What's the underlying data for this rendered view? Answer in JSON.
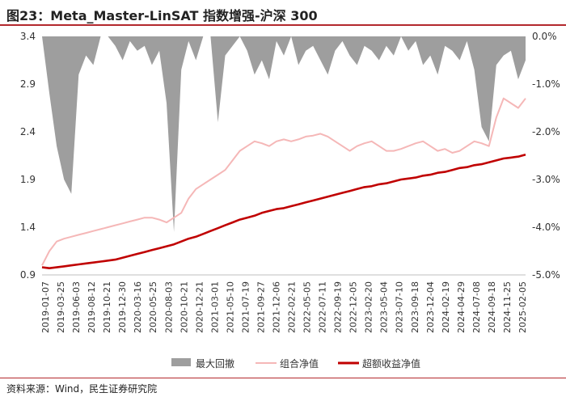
{
  "header": {
    "title": "图23：Meta_Master-LinSAT 指数增强-沪深 300"
  },
  "footer": {
    "source": "资料来源：Wind，民生证券研究院"
  },
  "chart_data": {
    "type": "line",
    "left_axis": {
      "ticks": [
        "0.9",
        "1.4",
        "1.9",
        "2.4",
        "2.9",
        "3.4"
      ],
      "values": [
        0.9,
        1.4,
        1.9,
        2.4,
        2.9,
        3.4
      ],
      "ylim": [
        0.9,
        3.4
      ]
    },
    "right_axis": {
      "ticks": [
        "-5.0%",
        "-4.0%",
        "-3.0%",
        "-2.0%",
        "-1.0%",
        "0.0%"
      ],
      "values": [
        -5,
        -4,
        -3,
        -2,
        -1,
        0
      ],
      "ylim": [
        -5,
        0
      ]
    },
    "x_ticks": [
      "2019-01-07",
      "2019-03-25",
      "2019-06-03",
      "2019-08-12",
      "2019-10-21",
      "2019-12-30",
      "2020-03-16",
      "2020-05-25",
      "2020-08-03",
      "2020-10-21",
      "2020-12-21",
      "2021-03-01",
      "2021-05-10",
      "2021-07-19",
      "2021-09-27",
      "2021-12-06",
      "2022-02-21",
      "2022-05-05",
      "2022-07-11",
      "2022-09-19",
      "2022-12-05",
      "2023-02-20",
      "2023-05-04",
      "2023-07-10",
      "2023-09-18",
      "2023-12-04",
      "2024-02-19",
      "2024-04-29",
      "2024-07-08",
      "2024-09-18",
      "2024-11-25",
      "2025-02-05"
    ],
    "series": [
      {
        "name": "最大回撤",
        "kind": "area",
        "axis": "right",
        "color": "#9e9e9e",
        "values": [
          0,
          -1.2,
          -2.3,
          -3.0,
          -3.3,
          -0.8,
          -0.4,
          -0.6,
          0,
          0,
          -0.2,
          -0.5,
          -0.1,
          -0.3,
          -0.2,
          -0.6,
          -0.3,
          -1.4,
          -4.1,
          -0.7,
          -0.1,
          -0.5,
          0,
          0,
          -1.8,
          -0.4,
          -0.2,
          0,
          -0.3,
          -0.8,
          -0.5,
          -0.9,
          -0.1,
          -0.4,
          0,
          -0.6,
          -0.3,
          -0.2,
          -0.5,
          -0.8,
          -0.3,
          -0.1,
          -0.4,
          -0.6,
          -0.2,
          -0.3,
          -0.5,
          -0.2,
          -0.4,
          0,
          -0.3,
          -0.1,
          -0.6,
          -0.4,
          -0.8,
          -0.2,
          -0.3,
          -0.5,
          -0.1,
          -0.7,
          -1.9,
          -2.2,
          -0.6,
          -0.4,
          -0.3,
          -0.9,
          -0.5
        ]
      },
      {
        "name": "组合净值",
        "kind": "line",
        "axis": "left",
        "color": "#f5b7b7",
        "values": [
          1.0,
          1.15,
          1.25,
          1.28,
          1.3,
          1.32,
          1.34,
          1.36,
          1.38,
          1.4,
          1.42,
          1.44,
          1.46,
          1.48,
          1.5,
          1.5,
          1.48,
          1.45,
          1.5,
          1.55,
          1.7,
          1.8,
          1.85,
          1.9,
          1.95,
          2.0,
          2.1,
          2.2,
          2.25,
          2.3,
          2.28,
          2.25,
          2.3,
          2.32,
          2.3,
          2.32,
          2.35,
          2.36,
          2.38,
          2.35,
          2.3,
          2.25,
          2.2,
          2.25,
          2.28,
          2.3,
          2.25,
          2.2,
          2.2,
          2.22,
          2.25,
          2.28,
          2.3,
          2.25,
          2.2,
          2.22,
          2.18,
          2.2,
          2.25,
          2.3,
          2.28,
          2.25,
          2.55,
          2.75,
          2.7,
          2.65,
          2.75
        ]
      },
      {
        "name": "超额收益净值",
        "kind": "line",
        "axis": "left",
        "color": "#c00000",
        "values": [
          0.98,
          0.97,
          0.98,
          0.99,
          1.0,
          1.01,
          1.02,
          1.03,
          1.04,
          1.05,
          1.06,
          1.08,
          1.1,
          1.12,
          1.14,
          1.16,
          1.18,
          1.2,
          1.22,
          1.25,
          1.28,
          1.3,
          1.33,
          1.36,
          1.39,
          1.42,
          1.45,
          1.48,
          1.5,
          1.52,
          1.55,
          1.57,
          1.59,
          1.6,
          1.62,
          1.64,
          1.66,
          1.68,
          1.7,
          1.72,
          1.74,
          1.76,
          1.78,
          1.8,
          1.82,
          1.83,
          1.85,
          1.86,
          1.88,
          1.9,
          1.91,
          1.92,
          1.94,
          1.95,
          1.97,
          1.98,
          2.0,
          2.02,
          2.03,
          2.05,
          2.06,
          2.08,
          2.1,
          2.12,
          2.13,
          2.14,
          2.16
        ]
      }
    ],
    "legend_position": "bottom"
  }
}
